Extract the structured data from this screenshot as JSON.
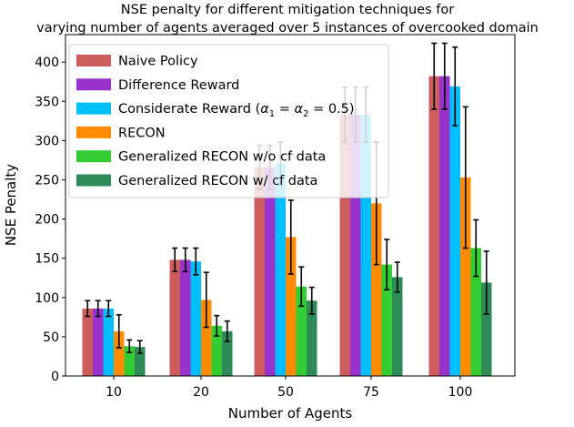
{
  "chart_data": {
    "type": "bar",
    "title_lines": [
      "NSE penalty for different mitigation techniques for",
      "varying number of agents averaged over 5 instances of overcooked domain"
    ],
    "xlabel": "Number of Agents",
    "ylabel": "NSE Penalty",
    "categories": [
      "10",
      "20",
      "50",
      "75",
      "100"
    ],
    "ylim": [
      0,
      435
    ],
    "yticks": [
      0,
      50,
      100,
      150,
      200,
      250,
      300,
      350,
      400
    ],
    "legend_position": "upper-left",
    "series": [
      {
        "name": "Naive Policy",
        "color": "#cd5c5c",
        "values": [
          86,
          148,
          266,
          333,
          382
        ],
        "errors": [
          10,
          15,
          28,
          35,
          42
        ]
      },
      {
        "name": "Difference Reward",
        "color": "#9932cc",
        "values": [
          86,
          148,
          266,
          333,
          382
        ],
        "errors": [
          10,
          15,
          28,
          35,
          42
        ]
      },
      {
        "name": "Considerate Reward (α1 = α2 = 0.5)",
        "legend_parts": {
          "prefix": "Considerate Reward (",
          "a1": "α",
          "sub1": "1",
          "mid": " = ",
          "a2": "α",
          "sub2": "2",
          "suffix": " = 0.5)"
        },
        "color": "#00bfff",
        "values": [
          86,
          146,
          271,
          333,
          369
        ],
        "errors": [
          10,
          17,
          27,
          35,
          50
        ]
      },
      {
        "name": "RECON",
        "color": "#ff8c00",
        "values": [
          57,
          97,
          177,
          220,
          253
        ],
        "errors": [
          21,
          35,
          47,
          78,
          90
        ]
      },
      {
        "name": "Generalized RECON w/o cf data",
        "color": "#32cd32",
        "values": [
          38,
          64,
          114,
          142,
          163
        ],
        "errors": [
          8,
          13,
          25,
          32,
          36
        ]
      },
      {
        "name": "Generalized RECON w/ cf data",
        "color": "#2e8b57",
        "values": [
          37,
          57,
          96,
          126,
          119
        ],
        "errors": [
          8,
          13,
          17,
          19,
          40
        ]
      }
    ]
  }
}
